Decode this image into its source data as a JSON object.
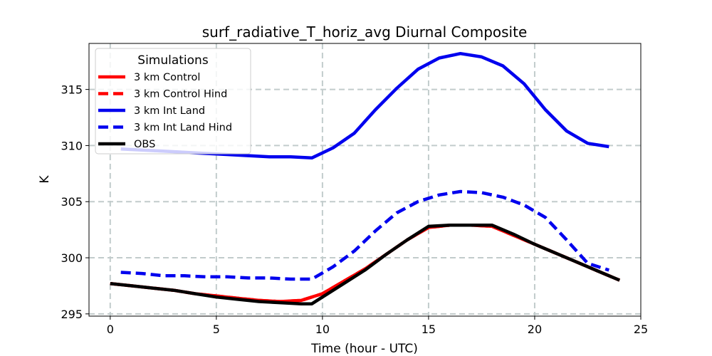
{
  "chart_data": {
    "type": "line",
    "title": "surf_radiative_T_horiz_avg Diurnal Composite",
    "xlabel": "Time (hour - UTC)",
    "ylabel": "K",
    "xlim": [
      -1,
      25
    ],
    "ylim": [
      294.8,
      319.1
    ],
    "xticks": [
      0,
      5,
      10,
      15,
      20,
      25
    ],
    "yticks": [
      295,
      300,
      305,
      310,
      315
    ],
    "grid": true,
    "legend": {
      "title": "Simulations",
      "position": "top-left"
    },
    "series": [
      {
        "name": "3 km Control",
        "color": "#ff0000",
        "style": "solid",
        "x": [
          0,
          1,
          2,
          3,
          4,
          5,
          6,
          7,
          8,
          9,
          10,
          11,
          12,
          13,
          14,
          15,
          16,
          17,
          18,
          19,
          20,
          21,
          22,
          23,
          24
        ],
        "y": [
          297.7,
          297.5,
          297.3,
          297.1,
          296.8,
          296.6,
          296.4,
          296.2,
          296.1,
          296.2,
          296.8,
          297.9,
          299.0,
          300.3,
          301.6,
          302.7,
          302.9,
          302.9,
          302.8,
          302.0,
          301.2,
          300.4,
          299.6,
          298.8,
          298.0
        ]
      },
      {
        "name": "3 km Control Hind",
        "color": "#ff0000",
        "style": "dashed",
        "x": [
          0,
          1,
          2,
          3,
          4,
          5,
          6,
          7,
          8,
          9,
          10,
          11,
          12,
          13,
          14,
          15,
          16,
          17,
          18,
          19,
          20,
          21,
          22,
          23,
          24
        ],
        "y": [
          297.7,
          297.5,
          297.3,
          297.1,
          296.8,
          296.6,
          296.4,
          296.2,
          296.1,
          296.2,
          296.8,
          297.9,
          299.0,
          300.3,
          301.6,
          302.7,
          302.9,
          302.9,
          302.8,
          302.0,
          301.2,
          300.4,
          299.6,
          298.8,
          298.0
        ]
      },
      {
        "name": "3 km Int Land",
        "color": "#0000ee",
        "style": "solid",
        "x": [
          0.5,
          1.5,
          2.5,
          3.5,
          4.5,
          5.5,
          6.5,
          7.5,
          8.5,
          9.5,
          10.5,
          11.5,
          12.5,
          13.5,
          14.5,
          15.5,
          16.5,
          17.5,
          18.5,
          19.5,
          20.5,
          21.5,
          22.5,
          23.5
        ],
        "y": [
          309.7,
          309.6,
          309.5,
          309.4,
          309.3,
          309.2,
          309.1,
          309.0,
          309.0,
          308.9,
          309.8,
          311.1,
          313.2,
          315.1,
          316.8,
          317.8,
          318.2,
          317.9,
          317.1,
          315.5,
          313.2,
          311.3,
          310.2,
          309.9
        ]
      },
      {
        "name": "3 km Int Land Hind",
        "color": "#0000ee",
        "style": "dashed",
        "x": [
          0.5,
          1.5,
          2.5,
          3.5,
          4.5,
          5.5,
          6.5,
          7.5,
          8.5,
          9.5,
          10.5,
          11.5,
          12.5,
          13.5,
          14.5,
          15.5,
          16.5,
          17.5,
          18.5,
          19.5,
          20.5,
          21.5,
          22.5,
          23.5
        ],
        "y": [
          298.7,
          298.6,
          298.4,
          298.4,
          298.3,
          298.3,
          298.2,
          298.2,
          298.1,
          298.1,
          299.2,
          300.6,
          302.4,
          304.0,
          305.0,
          305.6,
          305.9,
          305.8,
          305.4,
          304.7,
          303.6,
          301.6,
          299.5,
          298.9
        ]
      },
      {
        "name": "OBS",
        "color": "#000000",
        "style": "solid",
        "x": [
          0,
          1,
          2,
          3,
          4,
          5,
          6,
          7,
          8,
          9,
          9.5,
          10,
          11,
          12,
          13,
          14,
          15,
          16,
          17,
          18,
          19,
          20,
          21,
          22,
          23,
          24
        ],
        "y": [
          297.7,
          297.5,
          297.3,
          297.1,
          296.8,
          296.5,
          296.3,
          296.1,
          296.0,
          295.9,
          295.9,
          296.5,
          297.7,
          298.9,
          300.3,
          301.6,
          302.8,
          302.9,
          302.9,
          302.9,
          302.1,
          301.2,
          300.4,
          299.6,
          298.8,
          298.0
        ]
      }
    ]
  }
}
